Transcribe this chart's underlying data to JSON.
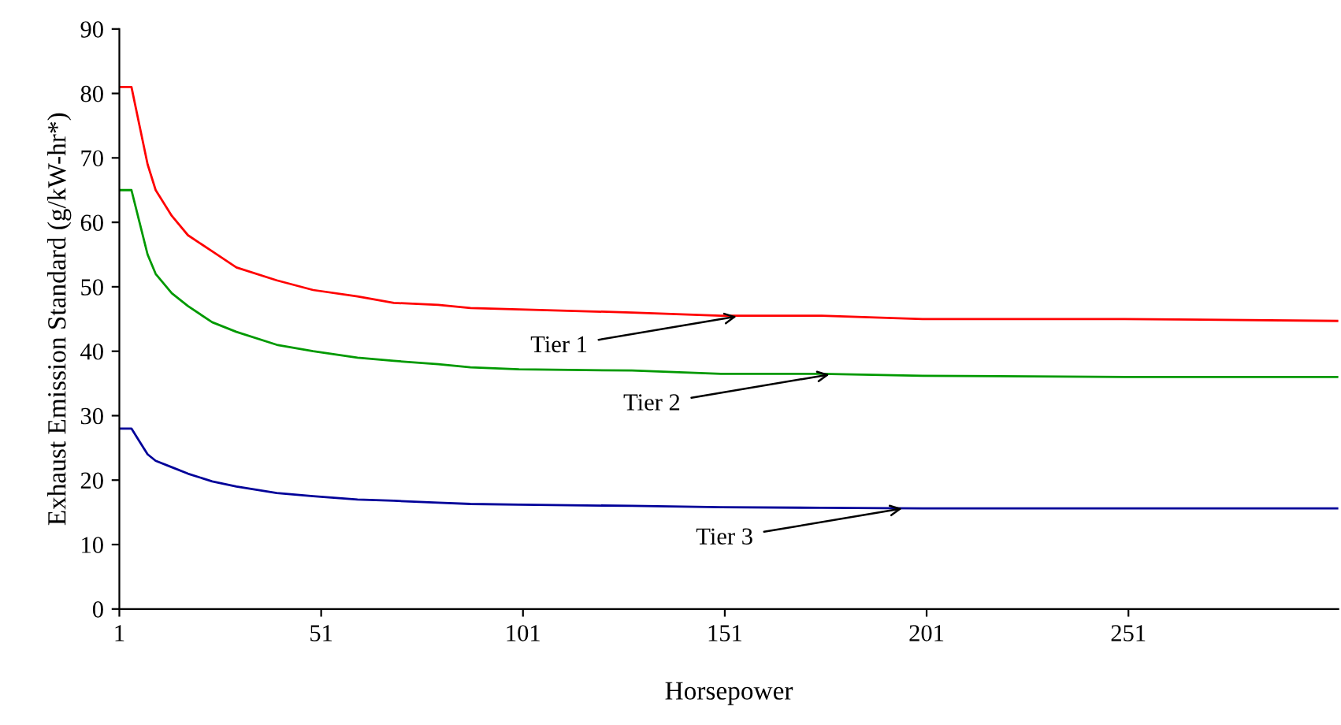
{
  "chart_data": {
    "type": "line",
    "xlabel": "Horsepower",
    "ylabel": "Exhaust Emission Standard (g/kW-hr*)",
    "x": [
      1,
      4,
      6,
      8,
      10,
      14,
      18,
      24,
      30,
      40,
      49,
      60,
      69,
      80,
      88,
      100,
      128,
      150,
      175,
      200,
      250,
      303
    ],
    "series": [
      {
        "color": "#ff0000",
        "values": [
          81,
          81,
          75,
          69,
          65,
          61,
          58,
          55.5,
          53,
          51,
          49.5,
          48.5,
          47.5,
          47.2,
          46.7,
          46.5,
          46,
          45.5,
          45.5,
          45,
          45,
          44.7
        ]
      },
      {
        "color": "#009900",
        "values": [
          65,
          65,
          60,
          55,
          52,
          49,
          47,
          44.5,
          43,
          41,
          40,
          39,
          38.5,
          38,
          37.5,
          37.2,
          37,
          36.5,
          36.5,
          36.2,
          36,
          36
        ]
      },
      {
        "color": "#000099",
        "values": [
          28,
          28,
          26,
          24,
          23,
          22,
          21,
          19.8,
          19,
          18,
          17.5,
          17,
          16.8,
          16.5,
          16.3,
          16.2,
          16,
          15.8,
          15.7,
          15.6,
          15.6,
          15.6
        ]
      }
    ],
    "xlim": [
      1,
      303
    ],
    "xticks": [
      1,
      51,
      101,
      151,
      201,
      251
    ],
    "ylim": [
      0,
      90
    ],
    "yticks": [
      0,
      10,
      20,
      30,
      40,
      50,
      60,
      70,
      80,
      90
    ],
    "grid": false,
    "legend": false,
    "marker": "none",
    "line_style": "solid",
    "annotations": [
      {
        "text": "Tier 1",
        "x": 155,
        "y": 45.5
      },
      {
        "text": "Tier 2",
        "x": 178,
        "y": 36.5
      },
      {
        "text": "Tier 3",
        "x": 196,
        "y": 15.7
      }
    ]
  }
}
